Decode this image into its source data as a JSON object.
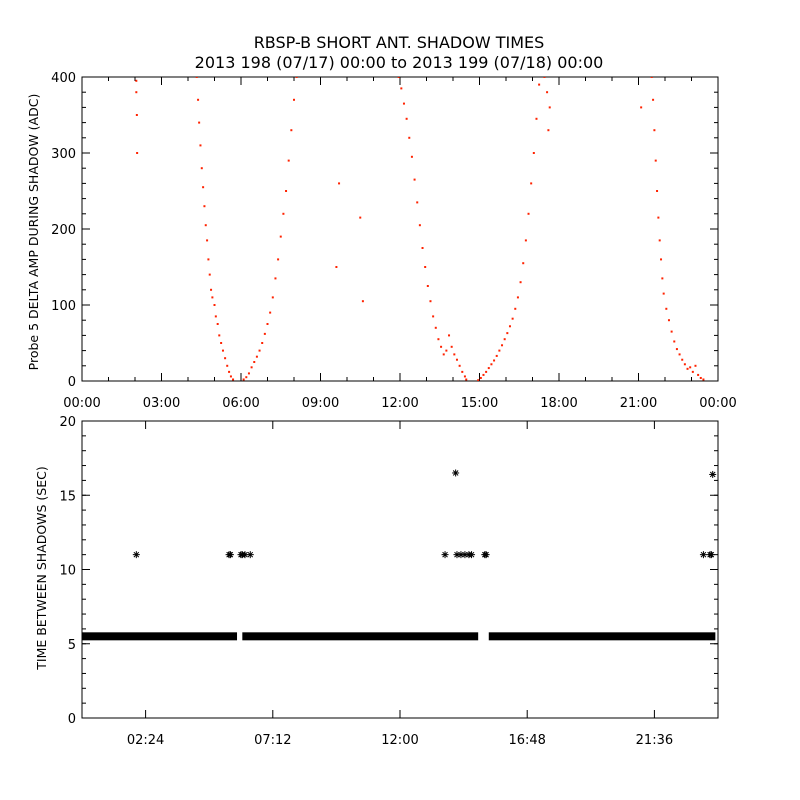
{
  "title_line1": "RBSP-B SHORT ANT. SHADOW TIMES",
  "title_line2": "2013 198 (07/17) 00:00 to 2013 199 (07/18) 00:00",
  "colors": {
    "top_points": "#ff2200",
    "bottom_points": "#000000",
    "axes": "#000000",
    "background": "#ffffff"
  },
  "chart_data": [
    {
      "type": "scatter",
      "ylabel": "Probe 5 DELTA AMP DURING SHADOW (ADC)",
      "xlabel": "",
      "x_unit": "hours of day",
      "xlim": [
        0,
        24
      ],
      "ylim": [
        0,
        400
      ],
      "grid": false,
      "x_ticks": [
        {
          "value": 0,
          "label": "00:00"
        },
        {
          "value": 3,
          "label": "03:00"
        },
        {
          "value": 6,
          "label": "06:00"
        },
        {
          "value": 9,
          "label": "09:00"
        },
        {
          "value": 12,
          "label": "12:00"
        },
        {
          "value": 15,
          "label": "15:00"
        },
        {
          "value": 18,
          "label": "18:00"
        },
        {
          "value": 21,
          "label": "21:00"
        },
        {
          "value": 24,
          "label": "00:00"
        }
      ],
      "y_ticks": [
        {
          "value": 0,
          "label": "0"
        },
        {
          "value": 100,
          "label": "100"
        },
        {
          "value": 200,
          "label": "200"
        },
        {
          "value": 300,
          "label": "300"
        },
        {
          "value": 400,
          "label": "400"
        }
      ],
      "series": [
        {
          "marker": "dot",
          "points": [
            [
              2.05,
              395
            ],
            [
              2.05,
              380
            ],
            [
              2.07,
              350
            ],
            [
              2.08,
              300
            ],
            [
              4.33,
              400
            ],
            [
              4.38,
              370
            ],
            [
              4.42,
              340
            ],
            [
              4.47,
              310
            ],
            [
              4.52,
              280
            ],
            [
              4.57,
              255
            ],
            [
              4.62,
              230
            ],
            [
              4.67,
              205
            ],
            [
              4.72,
              185
            ],
            [
              4.77,
              160
            ],
            [
              4.82,
              140
            ],
            [
              4.87,
              120
            ],
            [
              4.92,
              110
            ],
            [
              5.0,
              100
            ],
            [
              5.05,
              85
            ],
            [
              5.12,
              75
            ],
            [
              5.18,
              60
            ],
            [
              5.25,
              50
            ],
            [
              5.32,
              40
            ],
            [
              5.4,
              30
            ],
            [
              5.48,
              20
            ],
            [
              5.55,
              12
            ],
            [
              5.62,
              6
            ],
            [
              5.7,
              2
            ],
            [
              6.1,
              2
            ],
            [
              6.2,
              5
            ],
            [
              6.3,
              10
            ],
            [
              6.4,
              18
            ],
            [
              6.5,
              25
            ],
            [
              6.6,
              32
            ],
            [
              6.7,
              40
            ],
            [
              6.8,
              50
            ],
            [
              6.9,
              62
            ],
            [
              7.0,
              75
            ],
            [
              7.1,
              90
            ],
            [
              7.2,
              110
            ],
            [
              7.3,
              135
            ],
            [
              7.4,
              160
            ],
            [
              7.5,
              190
            ],
            [
              7.6,
              220
            ],
            [
              7.7,
              250
            ],
            [
              7.8,
              290
            ],
            [
              7.9,
              330
            ],
            [
              8.0,
              370
            ],
            [
              8.1,
              400
            ],
            [
              9.7,
              260
            ],
            [
              9.6,
              150
            ],
            [
              10.5,
              215
            ],
            [
              10.6,
              105
            ],
            [
              11.95,
              400
            ],
            [
              12.05,
              385
            ],
            [
              12.15,
              365
            ],
            [
              12.25,
              345
            ],
            [
              12.35,
              320
            ],
            [
              12.45,
              295
            ],
            [
              12.55,
              265
            ],
            [
              12.65,
              235
            ],
            [
              12.75,
              205
            ],
            [
              12.85,
              175
            ],
            [
              12.95,
              150
            ],
            [
              13.05,
              125
            ],
            [
              13.15,
              105
            ],
            [
              13.25,
              85
            ],
            [
              13.35,
              70
            ],
            [
              13.45,
              55
            ],
            [
              13.55,
              45
            ],
            [
              13.65,
              35
            ],
            [
              13.75,
              40
            ],
            [
              13.85,
              60
            ],
            [
              13.95,
              45
            ],
            [
              14.05,
              35
            ],
            [
              14.15,
              28
            ],
            [
              14.25,
              20
            ],
            [
              14.35,
              12
            ],
            [
              14.45,
              6
            ],
            [
              14.5,
              2
            ],
            [
              14.95,
              1
            ],
            [
              15.05,
              4
            ],
            [
              15.15,
              8
            ],
            [
              15.25,
              12
            ],
            [
              15.35,
              17
            ],
            [
              15.45,
              22
            ],
            [
              15.55,
              27
            ],
            [
              15.65,
              33
            ],
            [
              15.75,
              40
            ],
            [
              15.85,
              47
            ],
            [
              15.95,
              55
            ],
            [
              16.05,
              63
            ],
            [
              16.15,
              72
            ],
            [
              16.25,
              82
            ],
            [
              16.35,
              95
            ],
            [
              16.45,
              110
            ],
            [
              16.55,
              130
            ],
            [
              16.65,
              155
            ],
            [
              16.75,
              185
            ],
            [
              16.85,
              220
            ],
            [
              16.95,
              260
            ],
            [
              17.05,
              300
            ],
            [
              17.15,
              345
            ],
            [
              17.25,
              390
            ],
            [
              17.45,
              400
            ],
            [
              17.55,
              380
            ],
            [
              17.6,
              330
            ],
            [
              17.65,
              360
            ],
            [
              21.1,
              360
            ],
            [
              21.5,
              400
            ],
            [
              21.55,
              370
            ],
            [
              21.6,
              330
            ],
            [
              21.65,
              290
            ],
            [
              21.7,
              250
            ],
            [
              21.75,
              215
            ],
            [
              21.8,
              185
            ],
            [
              21.85,
              160
            ],
            [
              21.9,
              135
            ],
            [
              21.95,
              115
            ],
            [
              22.05,
              95
            ],
            [
              22.15,
              80
            ],
            [
              22.25,
              65
            ],
            [
              22.35,
              52
            ],
            [
              22.45,
              42
            ],
            [
              22.55,
              35
            ],
            [
              22.65,
              28
            ],
            [
              22.75,
              22
            ],
            [
              22.85,
              16
            ],
            [
              22.95,
              18
            ],
            [
              23.05,
              12
            ],
            [
              23.15,
              20
            ],
            [
              23.25,
              8
            ],
            [
              23.35,
              4
            ],
            [
              23.45,
              2
            ]
          ]
        }
      ]
    },
    {
      "type": "scatter",
      "ylabel": "TIME BETWEEN SHADOWS (SEC)",
      "xlabel": "",
      "x_unit": "hours of day",
      "xlim": [
        0,
        24
      ],
      "ylim": [
        0,
        20
      ],
      "grid": false,
      "x_ticks": [
        {
          "value": 2.4,
          "label": "02:24"
        },
        {
          "value": 7.2,
          "label": "07:12"
        },
        {
          "value": 12.0,
          "label": "12:00"
        },
        {
          "value": 16.8,
          "label": "16:48"
        },
        {
          "value": 21.6,
          "label": "21:36"
        }
      ],
      "y_ticks": [
        {
          "value": 0,
          "label": "0"
        },
        {
          "value": 5,
          "label": "5"
        },
        {
          "value": 10,
          "label": "10"
        },
        {
          "value": 15,
          "label": "15"
        },
        {
          "value": 20,
          "label": "20"
        }
      ],
      "series": [
        {
          "marker": "asterisk",
          "baseline_value": 5.5,
          "baseline_ranges": [
            [
              0.0,
              5.85
            ],
            [
              6.05,
              14.95
            ],
            [
              15.35,
              23.9
            ]
          ],
          "points": [
            [
              2.05,
              11.0
            ],
            [
              5.55,
              11.0
            ],
            [
              5.6,
              11.0
            ],
            [
              6.0,
              11.0
            ],
            [
              6.05,
              11.0
            ],
            [
              6.15,
              11.0
            ],
            [
              6.35,
              11.0
            ],
            [
              13.7,
              11.0
            ],
            [
              14.1,
              16.5
            ],
            [
              14.15,
              11.0
            ],
            [
              14.3,
              11.0
            ],
            [
              14.45,
              11.0
            ],
            [
              14.6,
              11.0
            ],
            [
              14.7,
              11.0
            ],
            [
              15.2,
              11.0
            ],
            [
              15.25,
              11.0
            ],
            [
              23.45,
              11.0
            ],
            [
              23.7,
              11.0
            ],
            [
              23.75,
              11.0
            ],
            [
              23.8,
              16.4
            ]
          ]
        }
      ]
    }
  ]
}
